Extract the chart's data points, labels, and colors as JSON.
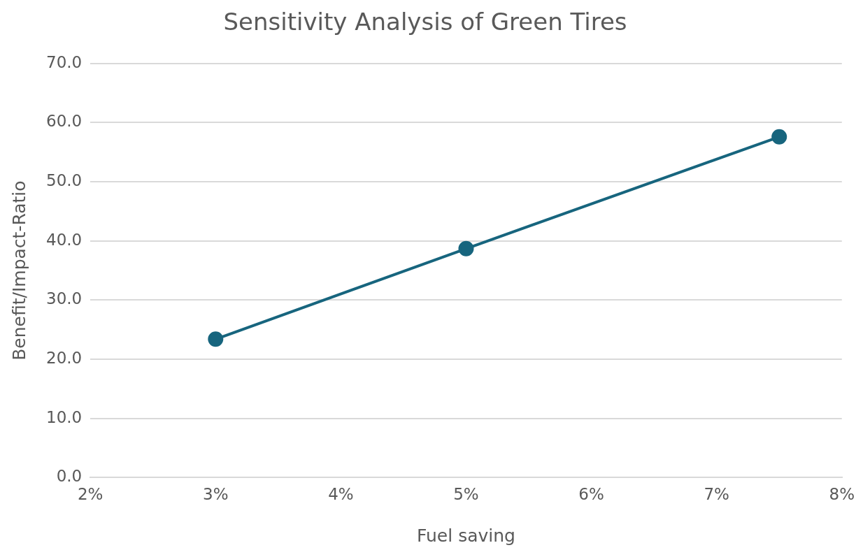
{
  "chart_data": {
    "type": "line",
    "title": "Sensitivity Analysis of Green Tires",
    "xlabel": "Fuel saving",
    "ylabel": "Benefit/Impact-Ratio",
    "x": [
      3,
      5,
      7.5
    ],
    "series": [
      {
        "color": "#17657e",
        "values": [
          23.4,
          38.7,
          57.6
        ]
      }
    ],
    "xlim": [
      2,
      8
    ],
    "xticks": [
      {
        "value": 2,
        "label": "2%"
      },
      {
        "value": 3,
        "label": "3%"
      },
      {
        "value": 4,
        "label": "4%"
      },
      {
        "value": 5,
        "label": "5%"
      },
      {
        "value": 6,
        "label": "6%"
      },
      {
        "value": 7,
        "label": "7%"
      },
      {
        "value": 8,
        "label": "8%"
      }
    ],
    "ylim": [
      0,
      70
    ],
    "yticks": [
      {
        "value": 0,
        "label": "0.0"
      },
      {
        "value": 10,
        "label": "10.0"
      },
      {
        "value": 20,
        "label": "20.0"
      },
      {
        "value": 30,
        "label": "30.0"
      },
      {
        "value": 40,
        "label": "40.0"
      },
      {
        "value": 50,
        "label": "50.0"
      },
      {
        "value": 60,
        "label": "60.0"
      },
      {
        "value": 70,
        "label": "70.0"
      }
    ],
    "grid": "y",
    "legend": false,
    "marker": "circle",
    "line_style": "solid"
  }
}
